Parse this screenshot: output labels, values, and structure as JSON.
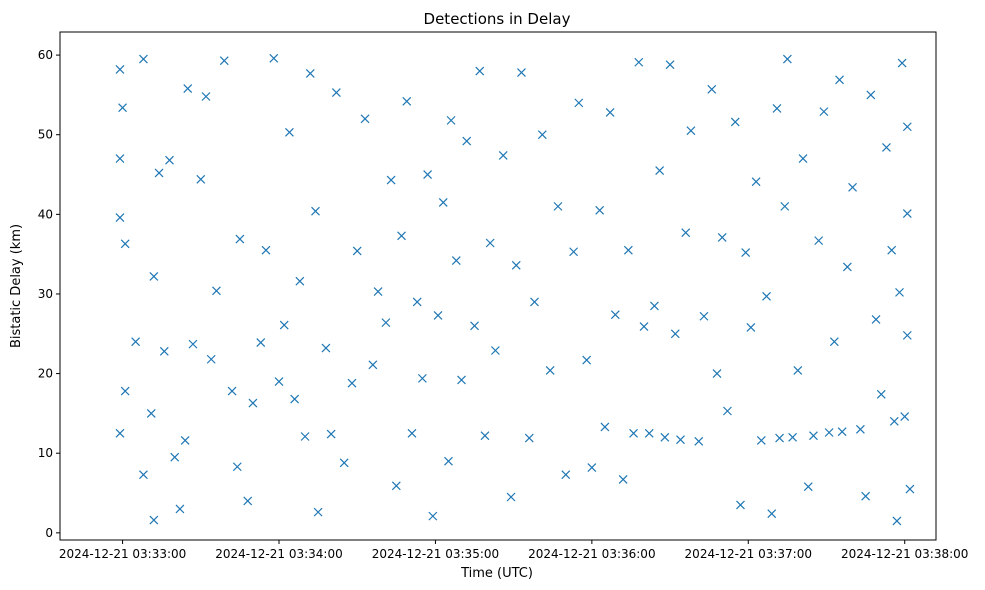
{
  "chart_data": {
    "type": "scatter",
    "title": "Detections in Delay",
    "xlabel": "Time (UTC)",
    "ylabel": "Bistatic Delay (km)",
    "marker": "x",
    "color": "#1f77b4",
    "grid": false,
    "x_range": [
      "2024-12-21 03:32:36",
      "2024-12-21 03:38:12"
    ],
    "ylim": [
      -0.9,
      62.9
    ],
    "x_ticks": [
      "2024-12-21 03:33:00",
      "2024-12-21 03:34:00",
      "2024-12-21 03:35:00",
      "2024-12-21 03:36:00",
      "2024-12-21 03:37:00",
      "2024-12-21 03:38:00"
    ],
    "y_ticks": [
      0,
      10,
      20,
      30,
      40,
      50,
      60
    ],
    "series": [
      {
        "points": [
          [
            "2024-12-21 03:32:59",
            58.2
          ],
          [
            "2024-12-21 03:32:59",
            47.0
          ],
          [
            "2024-12-21 03:32:59",
            39.6
          ],
          [
            "2024-12-21 03:32:59",
            12.5
          ],
          [
            "2024-12-21 03:33:00",
            53.4
          ],
          [
            "2024-12-21 03:33:01",
            36.3
          ],
          [
            "2024-12-21 03:33:01",
            17.8
          ],
          [
            "2024-12-21 03:33:05",
            24.0
          ],
          [
            "2024-12-21 03:33:08",
            7.3
          ],
          [
            "2024-12-21 03:33:08",
            59.5
          ],
          [
            "2024-12-21 03:33:11",
            15.0
          ],
          [
            "2024-12-21 03:33:12",
            32.2
          ],
          [
            "2024-12-21 03:33:12",
            1.6
          ],
          [
            "2024-12-21 03:33:14",
            45.2
          ],
          [
            "2024-12-21 03:33:16",
            22.8
          ],
          [
            "2024-12-21 03:33:18",
            46.8
          ],
          [
            "2024-12-21 03:33:20",
            9.5
          ],
          [
            "2024-12-21 03:33:22",
            3.0
          ],
          [
            "2024-12-21 03:33:24",
            11.6
          ],
          [
            "2024-12-21 03:33:25",
            55.8
          ],
          [
            "2024-12-21 03:33:27",
            23.7
          ],
          [
            "2024-12-21 03:33:30",
            44.4
          ],
          [
            "2024-12-21 03:33:32",
            54.8
          ],
          [
            "2024-12-21 03:33:34",
            21.8
          ],
          [
            "2024-12-21 03:33:36",
            30.4
          ],
          [
            "2024-12-21 03:33:39",
            59.3
          ],
          [
            "2024-12-21 03:33:42",
            17.8
          ],
          [
            "2024-12-21 03:33:44",
            8.3
          ],
          [
            "2024-12-21 03:33:45",
            36.9
          ],
          [
            "2024-12-21 03:33:48",
            4.0
          ],
          [
            "2024-12-21 03:33:50",
            16.3
          ],
          [
            "2024-12-21 03:33:53",
            23.9
          ],
          [
            "2024-12-21 03:33:55",
            35.5
          ],
          [
            "2024-12-21 03:33:58",
            59.6
          ],
          [
            "2024-12-21 03:34:00",
            19.0
          ],
          [
            "2024-12-21 03:34:02",
            26.1
          ],
          [
            "2024-12-21 03:34:04",
            50.3
          ],
          [
            "2024-12-21 03:34:06",
            16.8
          ],
          [
            "2024-12-21 03:34:08",
            31.6
          ],
          [
            "2024-12-21 03:34:10",
            12.1
          ],
          [
            "2024-12-21 03:34:12",
            57.7
          ],
          [
            "2024-12-21 03:34:14",
            40.4
          ],
          [
            "2024-12-21 03:34:15",
            2.6
          ],
          [
            "2024-12-21 03:34:18",
            23.2
          ],
          [
            "2024-12-21 03:34:20",
            12.4
          ],
          [
            "2024-12-21 03:34:22",
            55.3
          ],
          [
            "2024-12-21 03:34:25",
            8.8
          ],
          [
            "2024-12-21 03:34:28",
            18.8
          ],
          [
            "2024-12-21 03:34:30",
            35.4
          ],
          [
            "2024-12-21 03:34:33",
            52.0
          ],
          [
            "2024-12-21 03:34:36",
            21.1
          ],
          [
            "2024-12-21 03:34:38",
            30.3
          ],
          [
            "2024-12-21 03:34:41",
            26.4
          ],
          [
            "2024-12-21 03:34:43",
            44.3
          ],
          [
            "2024-12-21 03:34:45",
            5.9
          ],
          [
            "2024-12-21 03:34:47",
            37.3
          ],
          [
            "2024-12-21 03:34:49",
            54.2
          ],
          [
            "2024-12-21 03:34:51",
            12.5
          ],
          [
            "2024-12-21 03:34:53",
            29.0
          ],
          [
            "2024-12-21 03:34:55",
            19.4
          ],
          [
            "2024-12-21 03:34:57",
            45.0
          ],
          [
            "2024-12-21 03:34:59",
            2.1
          ],
          [
            "2024-12-21 03:35:01",
            27.3
          ],
          [
            "2024-12-21 03:35:03",
            41.5
          ],
          [
            "2024-12-21 03:35:05",
            9.0
          ],
          [
            "2024-12-21 03:35:06",
            51.8
          ],
          [
            "2024-12-21 03:35:08",
            34.2
          ],
          [
            "2024-12-21 03:35:10",
            19.2
          ],
          [
            "2024-12-21 03:35:12",
            49.2
          ],
          [
            "2024-12-21 03:35:15",
            26.0
          ],
          [
            "2024-12-21 03:35:17",
            58.0
          ],
          [
            "2024-12-21 03:35:19",
            12.2
          ],
          [
            "2024-12-21 03:35:21",
            36.4
          ],
          [
            "2024-12-21 03:35:23",
            22.9
          ],
          [
            "2024-12-21 03:35:26",
            47.4
          ],
          [
            "2024-12-21 03:35:29",
            4.5
          ],
          [
            "2024-12-21 03:35:31",
            33.6
          ],
          [
            "2024-12-21 03:35:33",
            57.8
          ],
          [
            "2024-12-21 03:35:36",
            11.9
          ],
          [
            "2024-12-21 03:35:38",
            29.0
          ],
          [
            "2024-12-21 03:35:41",
            50.0
          ],
          [
            "2024-12-21 03:35:44",
            20.4
          ],
          [
            "2024-12-21 03:35:47",
            41.0
          ],
          [
            "2024-12-21 03:35:50",
            7.3
          ],
          [
            "2024-12-21 03:35:53",
            35.3
          ],
          [
            "2024-12-21 03:35:55",
            54.0
          ],
          [
            "2024-12-21 03:35:58",
            21.7
          ],
          [
            "2024-12-21 03:36:00",
            8.2
          ],
          [
            "2024-12-21 03:36:03",
            40.5
          ],
          [
            "2024-12-21 03:36:05",
            13.3
          ],
          [
            "2024-12-21 03:36:07",
            52.8
          ],
          [
            "2024-12-21 03:36:09",
            27.4
          ],
          [
            "2024-12-21 03:36:12",
            6.7
          ],
          [
            "2024-12-21 03:36:14",
            35.5
          ],
          [
            "2024-12-21 03:36:16",
            12.5
          ],
          [
            "2024-12-21 03:36:18",
            59.1
          ],
          [
            "2024-12-21 03:36:20",
            25.9
          ],
          [
            "2024-12-21 03:36:22",
            12.5
          ],
          [
            "2024-12-21 03:36:24",
            28.5
          ],
          [
            "2024-12-21 03:36:26",
            45.5
          ],
          [
            "2024-12-21 03:36:28",
            12.0
          ],
          [
            "2024-12-21 03:36:30",
            58.8
          ],
          [
            "2024-12-21 03:36:32",
            25.0
          ],
          [
            "2024-12-21 03:36:34",
            11.7
          ],
          [
            "2024-12-21 03:36:36",
            37.7
          ],
          [
            "2024-12-21 03:36:38",
            50.5
          ],
          [
            "2024-12-21 03:36:41",
            11.5
          ],
          [
            "2024-12-21 03:36:43",
            27.2
          ],
          [
            "2024-12-21 03:36:46",
            55.7
          ],
          [
            "2024-12-21 03:36:48",
            20.0
          ],
          [
            "2024-12-21 03:36:50",
            37.1
          ],
          [
            "2024-12-21 03:36:52",
            15.3
          ],
          [
            "2024-12-21 03:36:55",
            51.6
          ],
          [
            "2024-12-21 03:36:57",
            3.5
          ],
          [
            "2024-12-21 03:36:59",
            35.2
          ],
          [
            "2024-12-21 03:37:01",
            25.8
          ],
          [
            "2024-12-21 03:37:03",
            44.1
          ],
          [
            "2024-12-21 03:37:05",
            11.6
          ],
          [
            "2024-12-21 03:37:07",
            29.7
          ],
          [
            "2024-12-21 03:37:09",
            2.4
          ],
          [
            "2024-12-21 03:37:11",
            53.3
          ],
          [
            "2024-12-21 03:37:12",
            11.9
          ],
          [
            "2024-12-21 03:37:14",
            41.0
          ],
          [
            "2024-12-21 03:37:15",
            59.5
          ],
          [
            "2024-12-21 03:37:17",
            12.0
          ],
          [
            "2024-12-21 03:37:19",
            20.4
          ],
          [
            "2024-12-21 03:37:21",
            47.0
          ],
          [
            "2024-12-21 03:37:23",
            5.8
          ],
          [
            "2024-12-21 03:37:25",
            12.2
          ],
          [
            "2024-12-21 03:37:27",
            36.7
          ],
          [
            "2024-12-21 03:37:29",
            52.9
          ],
          [
            "2024-12-21 03:37:31",
            12.6
          ],
          [
            "2024-12-21 03:37:33",
            24.0
          ],
          [
            "2024-12-21 03:37:35",
            56.9
          ],
          [
            "2024-12-21 03:37:36",
            12.7
          ],
          [
            "2024-12-21 03:37:38",
            33.4
          ],
          [
            "2024-12-21 03:37:40",
            43.4
          ],
          [
            "2024-12-21 03:37:43",
            13.0
          ],
          [
            "2024-12-21 03:37:45",
            4.6
          ],
          [
            "2024-12-21 03:37:47",
            55.0
          ],
          [
            "2024-12-21 03:37:49",
            26.8
          ],
          [
            "2024-12-21 03:37:51",
            17.4
          ],
          [
            "2024-12-21 03:37:53",
            48.4
          ],
          [
            "2024-12-21 03:37:55",
            35.5
          ],
          [
            "2024-12-21 03:37:56",
            14.0
          ],
          [
            "2024-12-21 03:37:57",
            1.5
          ],
          [
            "2024-12-21 03:37:58",
            30.2
          ],
          [
            "2024-12-21 03:37:59",
            59.0
          ],
          [
            "2024-12-21 03:38:00",
            14.6
          ],
          [
            "2024-12-21 03:38:01",
            40.1
          ],
          [
            "2024-12-21 03:38:01",
            51.0
          ],
          [
            "2024-12-21 03:38:01",
            24.8
          ],
          [
            "2024-12-21 03:38:02",
            5.5
          ]
        ]
      }
    ]
  }
}
